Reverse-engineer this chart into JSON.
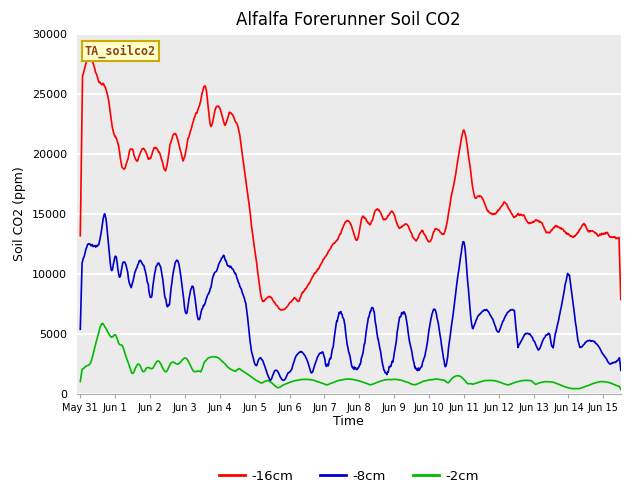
{
  "title": "Alfalfa Forerunner Soil CO2",
  "ylabel": "Soil CO2 (ppm)",
  "xlabel": "Time",
  "tag_label": "TA_soilco2",
  "legend_labels": [
    "-16cm",
    "-8cm",
    "-2cm"
  ],
  "legend_colors": [
    "#ff0000",
    "#0000cc",
    "#00bb00"
  ],
  "fig_bg_color": "#ffffff",
  "plot_bg_color": "#ebebeb",
  "ylim": [
    0,
    30000
  ],
  "yticks": [
    0,
    5000,
    10000,
    15000,
    20000,
    25000,
    30000
  ],
  "xlim_start": -0.1,
  "xlim_end": 15.5,
  "xtick_positions": [
    0,
    1,
    2,
    3,
    4,
    5,
    6,
    7,
    8,
    9,
    10,
    11,
    12,
    13,
    14,
    15
  ],
  "xtick_labels": [
    "May 31",
    "Jun 1",
    "Jun 2",
    "Jun 3",
    "Jun 4",
    "Jun 5",
    "Jun 6",
    "Jun 7",
    "Jun 8",
    "Jun 9",
    "Jun 10",
    "Jun 11",
    "Jun 12",
    "Jun 13",
    "Jun 14",
    "Jun 15"
  ]
}
